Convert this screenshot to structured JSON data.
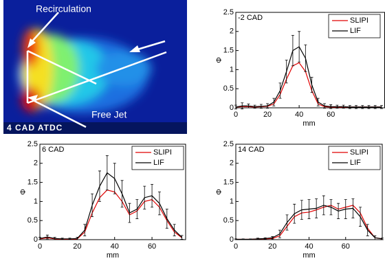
{
  "image_panel": {
    "labels": [
      "Recirculation",
      "Free Jet"
    ],
    "caption": "4 CAD ATDC"
  },
  "chart_data": [
    {
      "type": "line",
      "annotation": "-2 CAD",
      "xlabel": "mm",
      "ylabel": "Φ",
      "x": [
        0,
        4,
        8,
        12,
        16,
        20,
        24,
        28,
        32,
        36,
        40,
        44,
        48,
        52,
        56,
        60,
        64,
        68,
        72,
        76,
        80,
        84,
        88,
        92
      ],
      "xlim": [
        0,
        94
      ],
      "ylim": [
        0,
        2.5
      ],
      "xticks": [
        0,
        20,
        40,
        60
      ],
      "yticks": [
        0,
        0.5,
        1,
        1.5,
        2,
        2.5
      ],
      "legend": "upper right",
      "series": [
        {
          "name": "SLIPI",
          "color": "#e00000",
          "values": [
            0.02,
            0.03,
            0.03,
            0.02,
            0.03,
            0.04,
            0.1,
            0.35,
            0.75,
            1.1,
            1.18,
            0.95,
            0.45,
            0.1,
            0.03,
            0.02,
            0.02,
            0.02,
            0.02,
            0.02,
            0.02,
            0.02,
            0.02,
            0.02
          ]
        },
        {
          "name": "LIF",
          "color": "#000000",
          "values": [
            0.02,
            0.05,
            0.05,
            0.03,
            0.04,
            0.05,
            0.15,
            0.45,
            0.95,
            1.5,
            1.6,
            1.3,
            0.6,
            0.15,
            0.05,
            0.03,
            0.03,
            0.03,
            0.02,
            0.02,
            0.02,
            0.02,
            0.02,
            0.02
          ],
          "errors": [
            0.05,
            0.08,
            0.05,
            0.04,
            0.05,
            0.06,
            0.1,
            0.2,
            0.3,
            0.4,
            0.4,
            0.35,
            0.2,
            0.1,
            0.06,
            0.05,
            0.04,
            0.04,
            0.04,
            0.04,
            0.04,
            0.04,
            0.04,
            0.04
          ]
        }
      ]
    },
    {
      "type": "line",
      "annotation": "6 CAD",
      "xlabel": "mm",
      "ylabel": "Φ",
      "x": [
        0,
        4,
        8,
        12,
        16,
        20,
        24,
        28,
        32,
        36,
        40,
        44,
        48,
        52,
        56,
        60,
        64,
        68,
        72,
        76
      ],
      "xlim": [
        0,
        78
      ],
      "ylim": [
        0,
        2.5
      ],
      "xticks": [
        0,
        20,
        40,
        60
      ],
      "yticks": [
        0,
        0.5,
        1,
        1.5,
        2,
        2.5
      ],
      "legend": "upper right",
      "series": [
        {
          "name": "SLIPI",
          "color": "#e00000",
          "values": [
            0.02,
            0.05,
            0.02,
            0.01,
            0.01,
            0.02,
            0.2,
            0.7,
            1.1,
            1.3,
            1.25,
            1.0,
            0.65,
            0.75,
            1.0,
            1.05,
            0.85,
            0.5,
            0.2,
            0.05
          ]
        },
        {
          "name": "LIF",
          "color": "#000000",
          "values": [
            0.03,
            0.07,
            0.03,
            0.02,
            0.02,
            0.03,
            0.25,
            0.9,
            1.4,
            1.75,
            1.6,
            1.2,
            0.7,
            0.8,
            1.1,
            1.15,
            0.95,
            0.55,
            0.25,
            0.06
          ],
          "errors": [
            0.03,
            0.05,
            0.03,
            0.02,
            0.02,
            0.03,
            0.15,
            0.3,
            0.4,
            0.45,
            0.4,
            0.35,
            0.25,
            0.25,
            0.3,
            0.3,
            0.3,
            0.25,
            0.15,
            0.05
          ]
        }
      ]
    },
    {
      "type": "line",
      "annotation": "14 CAD",
      "xlabel": "mm",
      "ylabel": "Φ",
      "x": [
        0,
        4,
        8,
        12,
        16,
        20,
        24,
        28,
        32,
        36,
        40,
        44,
        48,
        52,
        56,
        60,
        64,
        68,
        72,
        76,
        80
      ],
      "xlim": [
        0,
        80
      ],
      "ylim": [
        0,
        2.5
      ],
      "xticks": [
        0,
        20,
        40,
        60
      ],
      "yticks": [
        0,
        0.5,
        1,
        1.5,
        2,
        2.5
      ],
      "legend": "upper right",
      "series": [
        {
          "name": "SLIPI",
          "color": "#e00000",
          "values": [
            0.01,
            0.01,
            0.01,
            0.02,
            0.02,
            0.03,
            0.1,
            0.35,
            0.6,
            0.7,
            0.72,
            0.78,
            0.85,
            0.9,
            0.8,
            0.85,
            0.9,
            0.7,
            0.3,
            0.05,
            0.02
          ]
        },
        {
          "name": "LIF",
          "color": "#000000",
          "values": [
            0.01,
            0.01,
            0.01,
            0.02,
            0.03,
            0.05,
            0.15,
            0.45,
            0.68,
            0.78,
            0.8,
            0.82,
            0.9,
            0.85,
            0.75,
            0.8,
            0.82,
            0.6,
            0.25,
            0.05,
            0.02
          ],
          "errors": [
            0.01,
            0.01,
            0.01,
            0.02,
            0.02,
            0.03,
            0.1,
            0.2,
            0.25,
            0.25,
            0.25,
            0.25,
            0.25,
            0.2,
            0.2,
            0.25,
            0.25,
            0.25,
            0.15,
            0.05,
            0.02
          ]
        }
      ]
    }
  ]
}
